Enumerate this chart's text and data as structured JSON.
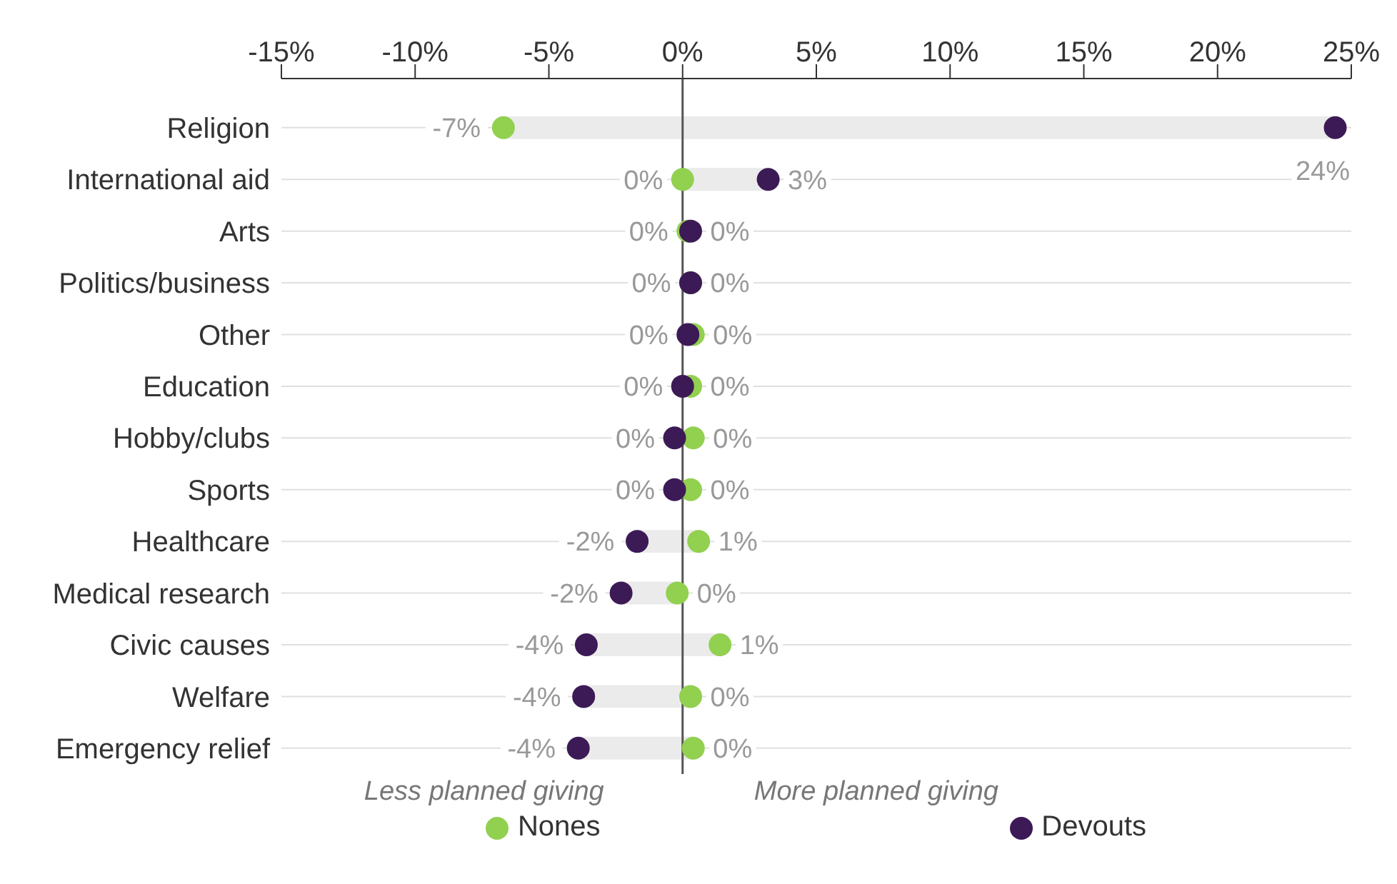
{
  "chart_data": {
    "type": "scatter",
    "orientation": "horizontal",
    "categories": [
      "Religion",
      "International aid",
      "Arts",
      "Politics/business",
      "Other",
      "Education",
      "Hobby/clubs",
      "Sports",
      "Healthcare",
      "Medical research",
      "Civic causes",
      "Welfare",
      "Emergency relief"
    ],
    "series": [
      {
        "type": "bar",
        "color": "#ebebeb",
        "base": [
          -6.7,
          0.0,
          null,
          null,
          null,
          null,
          null,
          null,
          -1.7,
          -2.3,
          -3.6,
          -3.7,
          -3.9
        ],
        "values": [
          31.1,
          3.2,
          null,
          null,
          null,
          null,
          null,
          null,
          2.3,
          2.1,
          5.0,
          4.0,
          4.3
        ]
      },
      {
        "name": "Nones",
        "color": "#92d050",
        "values": [
          -6.7,
          0.0,
          0.2,
          0.3,
          0.4,
          0.3,
          0.4,
          0.3,
          0.6,
          -0.2,
          1.4,
          0.3,
          0.4
        ],
        "value_labels": [
          "-7%",
          "0%",
          "0%",
          "0%",
          "0%",
          "0%",
          "0%",
          "0%",
          "1%",
          "0%",
          "1%",
          "0%",
          "0%"
        ]
      },
      {
        "name": "Devouts",
        "color": "#3c1a56",
        "values": [
          24.4,
          3.2,
          0.3,
          0.3,
          0.2,
          0.0,
          -0.3,
          -0.3,
          -1.7,
          -2.3,
          -3.6,
          -3.7,
          -3.9
        ],
        "value_labels": [
          "24%",
          "3%",
          "0%",
          "0%",
          "0%",
          "0%",
          "0%",
          "0%",
          "-2%",
          "-2%",
          "-4%",
          "-4%",
          "-4%"
        ]
      }
    ],
    "xlim": [
      -15,
      25
    ],
    "xticks": [
      {
        "value": -15,
        "label": "-15%"
      },
      {
        "value": -10,
        "label": "-10%"
      },
      {
        "value": -5,
        "label": "-5%"
      },
      {
        "value": 0,
        "label": "0%"
      },
      {
        "value": 5,
        "label": "5%"
      },
      {
        "value": 10,
        "label": "10%"
      },
      {
        "value": 15,
        "label": "15%"
      },
      {
        "value": 20,
        "label": "20%"
      },
      {
        "value": 25,
        "label": "25%"
      }
    ],
    "ref_lines": [
      {
        "axis": "x",
        "value": 0,
        "color": "#555555"
      }
    ],
    "annotations": [
      "Less planned giving",
      "More planned giving"
    ],
    "grid": "y",
    "legend": "bottom",
    "marker": "circle"
  }
}
